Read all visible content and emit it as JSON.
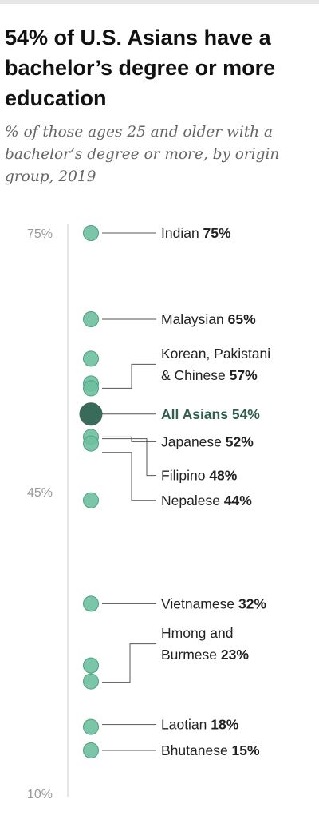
{
  "title": "54% of U.S. Asians have a bachelor’s degree or more education",
  "subtitle": "% of those ages 25 and older with a bachelor’s degree or more, by origin group, 2019",
  "colors": {
    "point": "#6dbf9f",
    "point_stroke": "#4f9f80",
    "highlight": "#3a6b5a",
    "leader": "#555555",
    "axis": "#cccccc"
  },
  "chart_data": {
    "type": "scatter",
    "title": "54% of U.S. Asians have a bachelor’s degree or more education",
    "subtitle": "% of those ages 25 and older with a bachelor’s degree or more, by origin group, 2019",
    "ylim": [
      10,
      75
    ],
    "y_ticks": [
      75,
      45,
      10
    ],
    "y_tick_labels": [
      "75%",
      "45%",
      "10%"
    ],
    "grid": false,
    "points": [
      {
        "group": "Indian",
        "value": 75,
        "highlight": false
      },
      {
        "group": "Malaysian",
        "value": 65,
        "highlight": false
      },
      {
        "group": "Korean",
        "value": 57,
        "highlight": false
      },
      {
        "group": "Pakistani",
        "value": 57,
        "highlight": false
      },
      {
        "group": "Chinese",
        "value": 57,
        "highlight": false
      },
      {
        "group": "All Asians",
        "value": 54,
        "highlight": true
      },
      {
        "group": "Japanese",
        "value": 52,
        "highlight": false
      },
      {
        "group": "Filipino",
        "value": 48,
        "highlight": false
      },
      {
        "group": "Nepalese",
        "value": 44,
        "highlight": false
      },
      {
        "group": "Vietnamese",
        "value": 32,
        "highlight": false
      },
      {
        "group": "Hmong",
        "value": 23,
        "highlight": false
      },
      {
        "group": "Burmese",
        "value": 23,
        "highlight": false
      },
      {
        "group": "Laotian",
        "value": 18,
        "highlight": false
      },
      {
        "group": "Bhutanese",
        "value": 15,
        "highlight": false
      }
    ],
    "labels": [
      {
        "lines": [
          "Indian"
        ],
        "value": "75%",
        "value_num": 75,
        "highlight": false
      },
      {
        "lines": [
          "Malaysian"
        ],
        "value": "65%",
        "value_num": 65,
        "highlight": false
      },
      {
        "lines": [
          "Korean, Pakistani",
          "& Chinese"
        ],
        "value": "57%",
        "value_num": 57,
        "highlight": false
      },
      {
        "lines": [
          "All Asians"
        ],
        "value": "54%",
        "value_num": 54,
        "highlight": true
      },
      {
        "lines": [
          "Japanese"
        ],
        "value": "52%",
        "value_num": 52,
        "highlight": false
      },
      {
        "lines": [
          "Filipino"
        ],
        "value": "48%",
        "value_num": 48,
        "highlight": false
      },
      {
        "lines": [
          "Nepalese"
        ],
        "value": "44%",
        "value_num": 44,
        "highlight": false
      },
      {
        "lines": [
          "Vietnamese"
        ],
        "value": "32%",
        "value_num": 32,
        "highlight": false
      },
      {
        "lines": [
          "Hmong and",
          "Burmese"
        ],
        "value": "23%",
        "value_num": 23,
        "highlight": false
      },
      {
        "lines": [
          "Laotian"
        ],
        "value": "18%",
        "value_num": 18,
        "highlight": false
      },
      {
        "lines": [
          "Bhutanese"
        ],
        "value": "15%",
        "value_num": 15,
        "highlight": false
      }
    ]
  }
}
